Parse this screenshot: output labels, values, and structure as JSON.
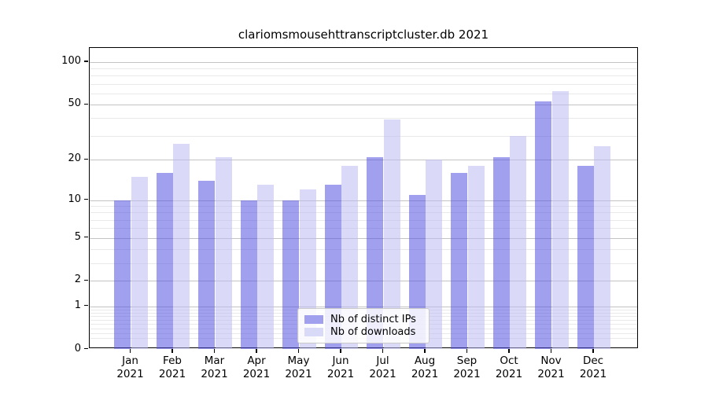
{
  "title": "clariomsmousehttranscriptcluster.db 2021",
  "legend": {
    "ips_label": "Nb of distinct IPs",
    "downloads_label": "Nb of downloads"
  },
  "colors": {
    "ips_bar": "#a0a0ee",
    "downloads_bar": "#d9d9f8",
    "grid_major": "#c3c3c3",
    "grid_minor": "#e9e9e9",
    "axis": "#000000"
  },
  "chart_data": {
    "type": "bar",
    "title": "clariomsmousehttranscriptcluster.db 2021",
    "categories": [
      "Jan",
      "Feb",
      "Mar",
      "Apr",
      "May",
      "Jun",
      "Jul",
      "Aug",
      "Sep",
      "Oct",
      "Nov",
      "Dec"
    ],
    "year": "2021",
    "series": [
      {
        "name": "Nb of distinct IPs",
        "values": [
          10,
          16,
          14,
          10,
          10,
          13,
          21,
          11,
          16,
          21,
          53,
          18
        ]
      },
      {
        "name": "Nb of downloads",
        "values": [
          15,
          26,
          21,
          13,
          12,
          18,
          39,
          20,
          18,
          30,
          62,
          25
        ]
      }
    ],
    "xlabel": "",
    "ylabel": "",
    "yscale": "log10(value+1)",
    "y_ticks": [
      0,
      1,
      2,
      5,
      10,
      20,
      50,
      100
    ],
    "y_minor_ticks": [
      0.2,
      0.3,
      0.4,
      0.5,
      0.6,
      0.7,
      0.8,
      0.9,
      3,
      4,
      6,
      7,
      8,
      9,
      30,
      40,
      60,
      70,
      80,
      90
    ],
    "ylim": [
      0,
      126
    ],
    "grid": true,
    "legend_position": "lower center"
  }
}
